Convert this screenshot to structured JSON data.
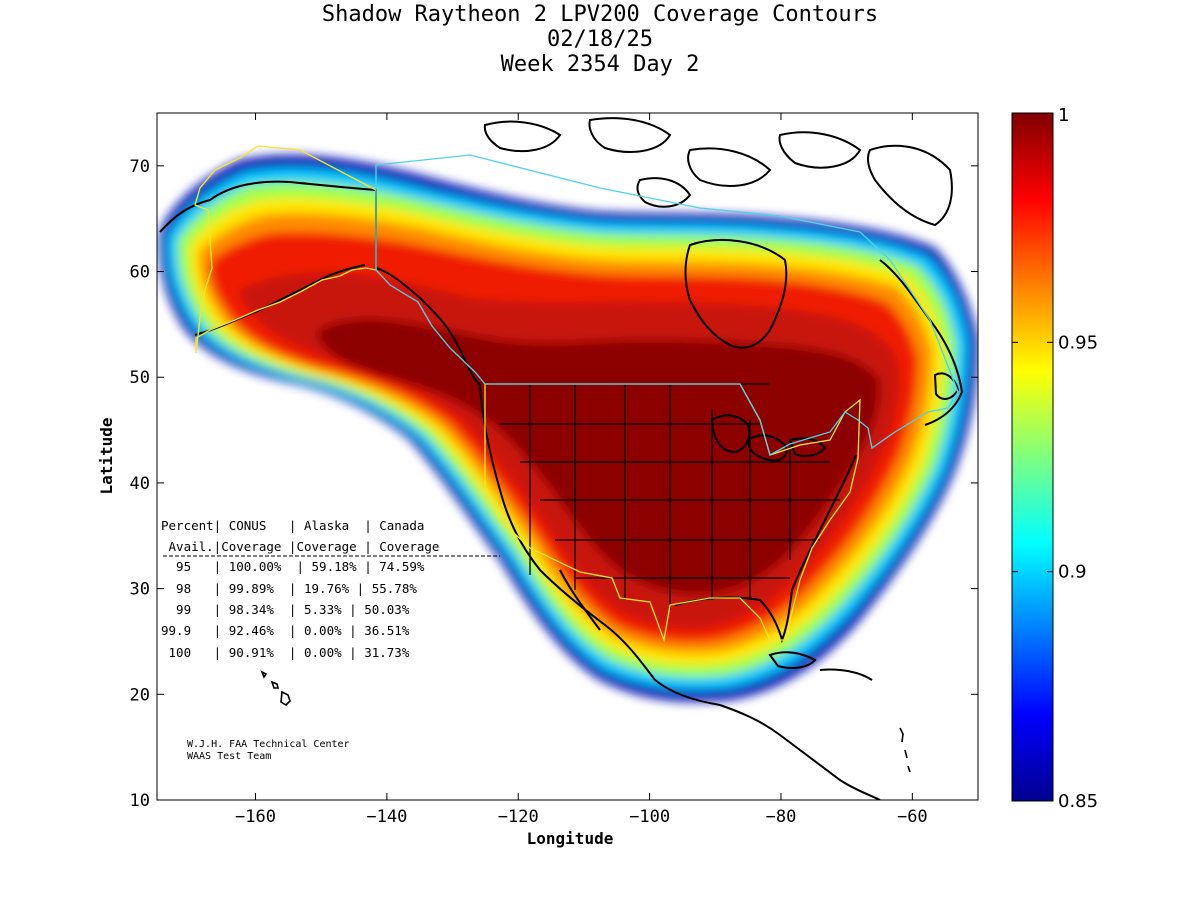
{
  "title": {
    "line1": "Shadow Raytheon 2 LPV200 Coverage Contours",
    "line2": "02/18/25",
    "line3": "Week 2354 Day 2"
  },
  "axes": {
    "xlabel": "Longitude",
    "ylabel": "Latitude",
    "xlim": [
      -175,
      -50
    ],
    "ylim": [
      10,
      75
    ],
    "xticks": [
      -160,
      -140,
      -120,
      -100,
      -80,
      -60
    ],
    "yticks": [
      10,
      20,
      30,
      40,
      50,
      60,
      70
    ]
  },
  "colorbar": {
    "range": [
      0.85,
      1.0
    ],
    "ticks": [
      "1",
      "0.95",
      "0.9",
      "0.85"
    ],
    "tick_values": [
      1.0,
      0.95,
      0.9,
      0.85
    ],
    "colormap": "jet"
  },
  "table": {
    "header1": "Percent| CONUS   | Alaska  | Canada",
    "header2": " Avail.|Coverage |Coverage | Coverage",
    "rows": [
      "  95   | 100.00%  | 59.18% | 74.59%",
      "  98   | 99.89%  | 19.76% | 55.78%",
      "  99   | 98.34%  | 5.33% | 50.03%",
      "99.9   | 92.46%  | 0.00% | 36.51%",
      " 100   | 90.91%  | 0.00% | 31.73%"
    ]
  },
  "credit": {
    "line1": "W.J.H. FAA Technical Center",
    "line2": "WAAS Test Team"
  },
  "colors": {
    "region_outline": "#f2e830",
    "border_outline": "#4fd2e8"
  }
}
